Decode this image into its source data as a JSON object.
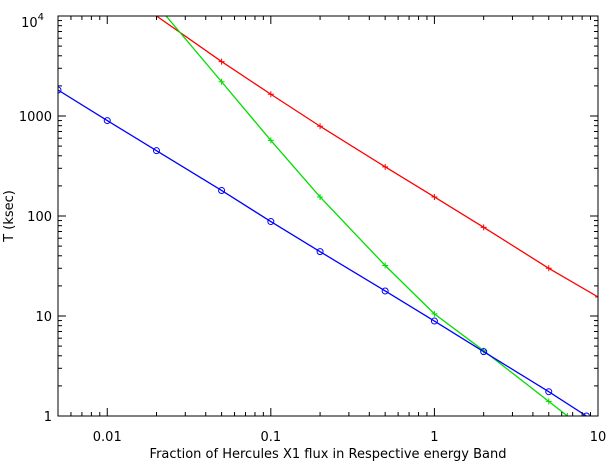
{
  "chart_data": {
    "type": "line",
    "xlabel": "Fraction of Hercules X1 flux in Respective energy Band",
    "ylabel": "T (ksec)",
    "xscale": "log",
    "yscale": "log",
    "xlim": [
      0.005,
      10
    ],
    "ylim": [
      1,
      10000
    ],
    "x_ticks": [
      {
        "value": 0.01,
        "label": "0.01"
      },
      {
        "value": 0.1,
        "label": "0.1"
      },
      {
        "value": 1,
        "label": "1"
      },
      {
        "value": 10,
        "label": "10"
      }
    ],
    "y_ticks": [
      {
        "value": 1,
        "label": "1"
      },
      {
        "value": 10,
        "label": "10"
      },
      {
        "value": 100,
        "label": "100"
      },
      {
        "value": 1000,
        "label": "1000"
      },
      {
        "value": 10000,
        "label": "10",
        "exponent": "4"
      }
    ],
    "grid": false,
    "series": [
      {
        "color": "#ff0000",
        "marker": "plus",
        "x": [
          0.02,
          0.05,
          0.1,
          0.2,
          0.5,
          1,
          2,
          5,
          10
        ],
        "y": [
          10000,
          3500,
          1650,
          790,
          310,
          155,
          77,
          30,
          15.5
        ]
      },
      {
        "color": "#00dd00",
        "marker": "plus",
        "x": [
          0.02,
          0.05,
          0.1,
          0.2,
          0.5,
          1,
          2,
          5,
          6.5
        ],
        "y": [
          13000,
          2200,
          570,
          155,
          32,
          10.5,
          4.5,
          1.4,
          1
        ]
      },
      {
        "color": "#0000ff",
        "marker": "circle",
        "x": [
          0.005,
          0.01,
          0.02,
          0.05,
          0.1,
          0.2,
          0.5,
          1,
          2,
          5,
          8.5
        ],
        "y": [
          1820,
          900,
          450,
          180,
          88,
          44,
          17.8,
          8.9,
          4.4,
          1.75,
          1
        ]
      }
    ]
  }
}
